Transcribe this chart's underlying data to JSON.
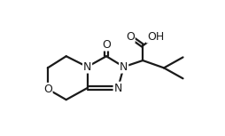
{
  "background": "#ffffff",
  "line_color": "#1a1a1a",
  "line_width": 1.6,
  "font_size": 9.0,
  "figsize": [
    2.54,
    1.53
  ],
  "dpi": 100,
  "xlim": [
    0.25,
    3.55
  ],
  "ylim": [
    -0.05,
    1.38
  ]
}
